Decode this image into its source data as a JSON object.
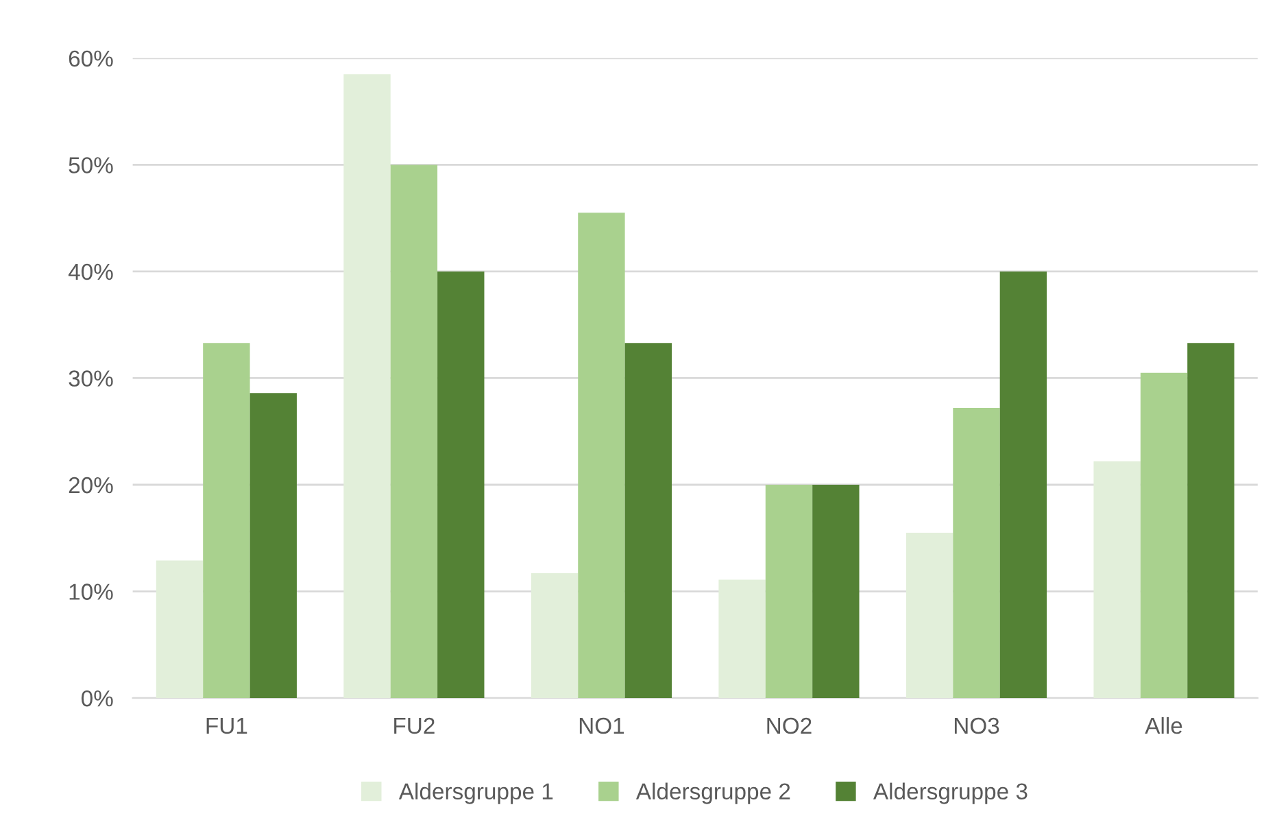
{
  "chart_data": {
    "type": "bar",
    "categories": [
      "FU1",
      "FU2",
      "NO1",
      "NO2",
      "NO3",
      "Alle"
    ],
    "series": [
      {
        "name": "Aldersgruppe 1",
        "color": "#e2efda",
        "values": [
          12.9,
          58.5,
          11.7,
          11.1,
          15.5,
          22.2
        ]
      },
      {
        "name": "Aldersgruppe 2",
        "color": "#a9d18e",
        "values": [
          33.3,
          50,
          45.5,
          20,
          27.2,
          30.5
        ]
      },
      {
        "name": "Aldersgruppe 3",
        "color": "#548235",
        "values": [
          28.6,
          40,
          33.3,
          20,
          40,
          33.3
        ]
      }
    ],
    "ylim": [
      0,
      60
    ],
    "yticks": [
      {
        "value": 0,
        "label": "0%"
      },
      {
        "value": 10,
        "label": "10%"
      },
      {
        "value": 20,
        "label": "20%"
      },
      {
        "value": 30,
        "label": "30%"
      },
      {
        "value": 40,
        "label": "40%"
      },
      {
        "value": 50,
        "label": "50%"
      },
      {
        "value": 60,
        "label": "60%"
      }
    ],
    "grid": "y",
    "legend": "bottom"
  }
}
